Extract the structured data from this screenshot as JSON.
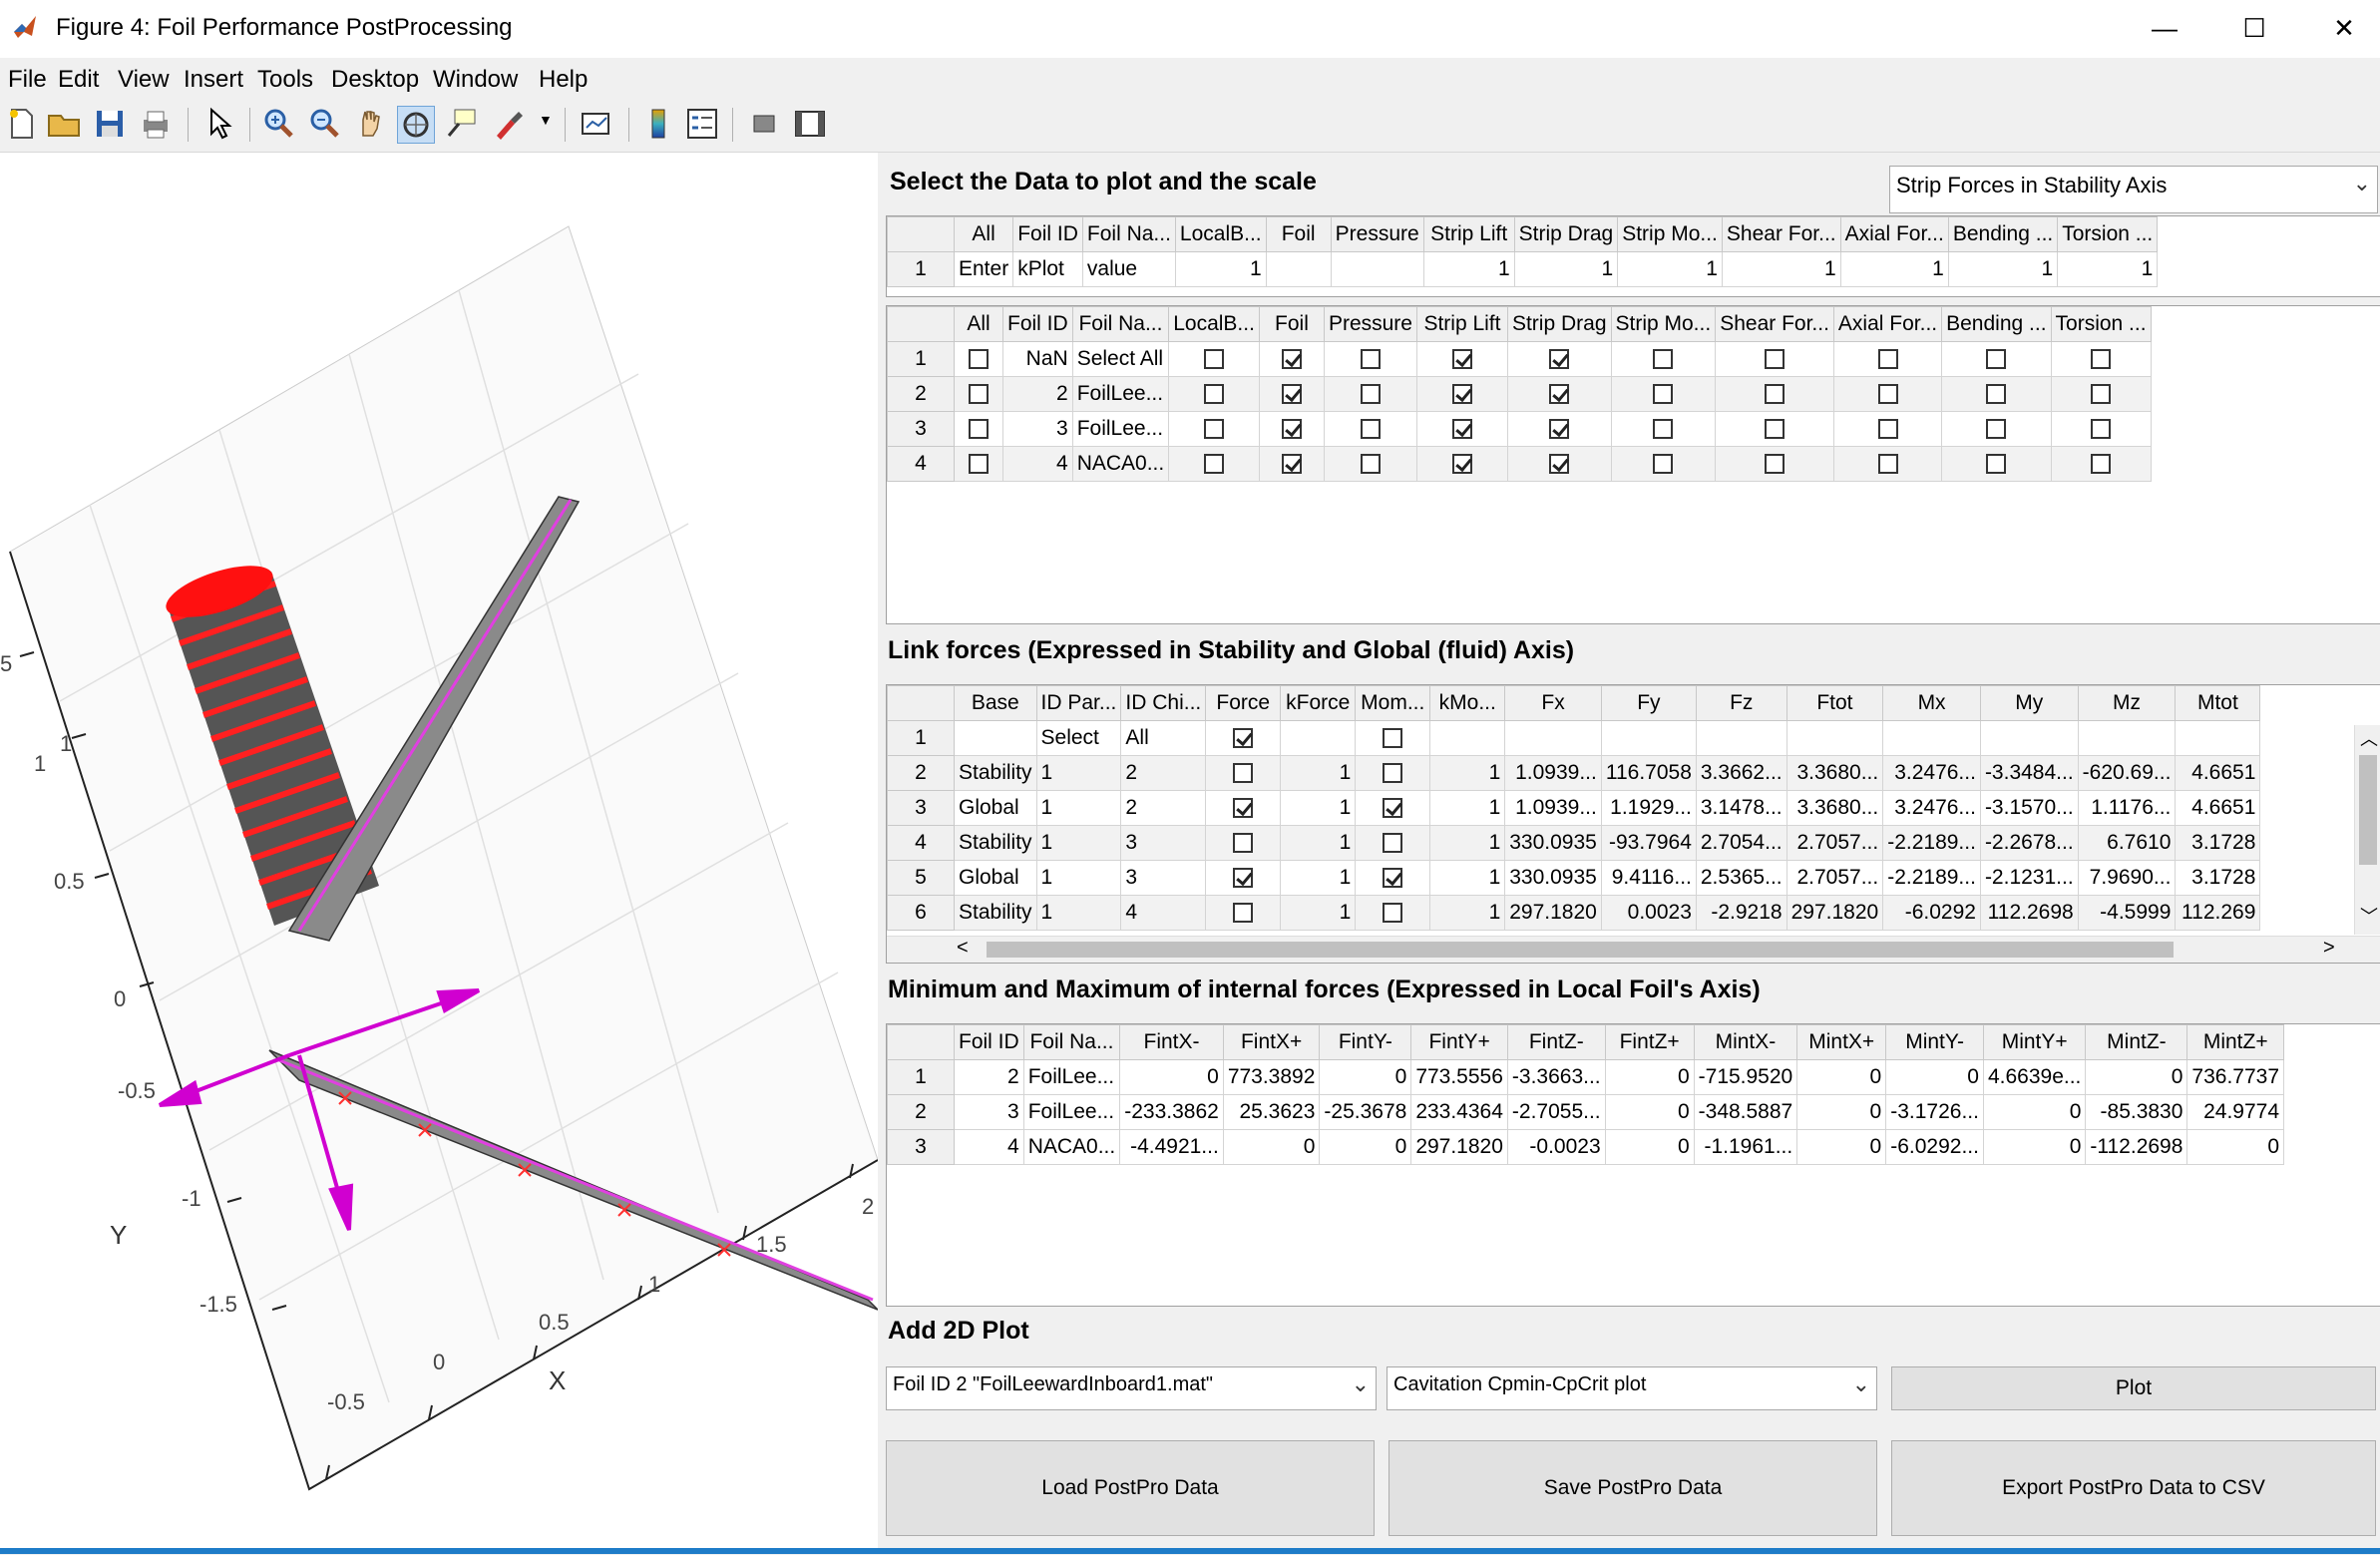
{
  "window": {
    "title": "Figure 4: Foil Performance PostProcessing",
    "minimize": "—",
    "maximize": "☐",
    "close": "✕"
  },
  "menu": [
    "File",
    "Edit",
    "View",
    "Insert",
    "Tools",
    "Desktop",
    "Window",
    "Help"
  ],
  "plot3d": {
    "axis_ticks_y": [
      "5",
      "1",
      "0.5",
      "0",
      "-0.5",
      "-1",
      "-1.5"
    ],
    "axis_ticks_x": [
      "-0.5",
      "0",
      "0.5",
      "1",
      "1.5",
      "2"
    ],
    "axis_label_x": "X",
    "axis_label_y": "Y",
    "side_tick": "1"
  },
  "section1": {
    "title": "Select the Data to plot and the scale",
    "dropdown": "Strip Forces in Stability Axis",
    "headers": [
      "All",
      "Foil ID",
      "Foil Na...",
      "LocalB...",
      "Foil",
      "Pressure",
      "Strip Lift",
      "Strip Drag",
      "Strip Mo...",
      "Shear For...",
      "Axial For...",
      "Bending ...",
      "Torsion ..."
    ],
    "scale_row": {
      "n": "1",
      "c0": "Enter",
      "c1": "kPlot",
      "c2": "value",
      "c3": "1",
      "c4": "",
      "c5": "",
      "c6": "1",
      "c7": "1",
      "c8": "1",
      "c9": "1",
      "c10": "1",
      "c11": "1",
      "c12": "1"
    },
    "select_rows": [
      {
        "n": "1",
        "id": "NaN",
        "name": "Select All",
        "cb": [
          false,
          false,
          true,
          false,
          true,
          true,
          false,
          false,
          false,
          false,
          false
        ]
      },
      {
        "n": "2",
        "id": "2",
        "name": "FoilLee...",
        "cb": [
          false,
          false,
          true,
          false,
          true,
          true,
          false,
          false,
          false,
          false,
          false
        ]
      },
      {
        "n": "3",
        "id": "3",
        "name": "FoilLee...",
        "cb": [
          false,
          false,
          true,
          false,
          true,
          true,
          false,
          false,
          false,
          false,
          false
        ]
      },
      {
        "n": "4",
        "id": "4",
        "name": "NACA0...",
        "cb": [
          false,
          false,
          true,
          false,
          true,
          true,
          false,
          false,
          false,
          false,
          false
        ]
      }
    ]
  },
  "section2": {
    "title": "Link forces (Expressed in Stability and Global (fluid) Axis)",
    "headers": [
      "Base",
      "ID Par...",
      "ID Chi...",
      "Force",
      "kForce",
      "Mom...",
      "kMo...",
      "Fx",
      "Fy",
      "Fz",
      "Ftot",
      "Mx",
      "My",
      "Mz",
      "Mtot"
    ],
    "rows": [
      {
        "n": "1",
        "base": "",
        "par": "Select",
        "chi": "All",
        "force": true,
        "kforce": "",
        "mom": false,
        "kmo": "",
        "fx": "",
        "fy": "",
        "fz": "",
        "ftot": "",
        "mx": "",
        "my": "",
        "mz": "",
        "mtot": ""
      },
      {
        "n": "2",
        "base": "Stability",
        "par": "1",
        "chi": "2",
        "force": false,
        "kforce": "1",
        "mom": false,
        "kmo": "1",
        "fx": "1.0939...",
        "fy": "116.7058",
        "fz": "3.3662...",
        "ftot": "3.3680...",
        "mx": "3.2476...",
        "my": "-3.3484...",
        "mz": "-620.69...",
        "mtot": "4.6651"
      },
      {
        "n": "3",
        "base": "Global",
        "par": "1",
        "chi": "2",
        "force": true,
        "kforce": "1",
        "mom": true,
        "kmo": "1",
        "fx": "1.0939...",
        "fy": "1.1929...",
        "fz": "3.1478...",
        "ftot": "3.3680...",
        "mx": "3.2476...",
        "my": "-3.1570...",
        "mz": "1.1176...",
        "mtot": "4.6651"
      },
      {
        "n": "4",
        "base": "Stability",
        "par": "1",
        "chi": "3",
        "force": false,
        "kforce": "1",
        "mom": false,
        "kmo": "1",
        "fx": "330.0935",
        "fy": "-93.7964",
        "fz": "2.7054...",
        "ftot": "2.7057...",
        "mx": "-2.2189...",
        "my": "-2.2678...",
        "mz": "6.7610",
        "mtot": "3.1728"
      },
      {
        "n": "5",
        "base": "Global",
        "par": "1",
        "chi": "3",
        "force": true,
        "kforce": "1",
        "mom": true,
        "kmo": "1",
        "fx": "330.0935",
        "fy": "9.4116...",
        "fz": "2.5365...",
        "ftot": "2.7057...",
        "mx": "-2.2189...",
        "my": "-2.1231...",
        "mz": "7.9690...",
        "mtot": "3.1728"
      },
      {
        "n": "6",
        "base": "Stability",
        "par": "1",
        "chi": "4",
        "force": false,
        "kforce": "1",
        "mom": false,
        "kmo": "1",
        "fx": "297.1820",
        "fy": "0.0023",
        "fz": "-2.9218",
        "ftot": "297.1820",
        "mx": "-6.0292",
        "my": "112.2698",
        "mz": "-4.5999",
        "mtot": "112.269"
      }
    ]
  },
  "section3": {
    "title": "Minimum and Maximum of internal forces (Expressed in Local Foil's Axis)",
    "headers": [
      "Foil ID",
      "Foil Na...",
      "FintX-",
      "FintX+",
      "FintY-",
      "FintY+",
      "FintZ-",
      "FintZ+",
      "MintX-",
      "MintX+",
      "MintY-",
      "MintY+",
      "MintZ-",
      "MintZ+"
    ],
    "rows": [
      {
        "n": "1",
        "c": [
          "2",
          "FoilLee...",
          "0",
          "773.3892",
          "0",
          "773.5556",
          "-3.3663...",
          "0",
          "-715.9520",
          "0",
          "0",
          "4.6639e...",
          "0",
          "736.7737"
        ]
      },
      {
        "n": "2",
        "c": [
          "3",
          "FoilLee...",
          "-233.3862",
          "25.3623",
          "-25.3678",
          "233.4364",
          "-2.7055...",
          "0",
          "-348.5887",
          "0",
          "-3.1726...",
          "0",
          "-85.3830",
          "24.9774"
        ]
      },
      {
        "n": "3",
        "c": [
          "4",
          "NACA0...",
          "-4.4921...",
          "0",
          "0",
          "297.1820",
          "-0.0023",
          "0",
          "-1.1961...",
          "0",
          "-6.0292...",
          "0",
          "-112.2698",
          "0"
        ]
      }
    ]
  },
  "section4": {
    "title": "Add 2D Plot",
    "foil_dropdown": "Foil ID 2 \"FoilLeewardInboard1.mat\"",
    "plot_dropdown": "Cavitation Cpmin-CpCrit plot",
    "plot_button": "Plot",
    "load_button": "Load PostPro Data",
    "save_button": "Save PostPro Data",
    "export_button": "Export PostPro Data to CSV"
  }
}
